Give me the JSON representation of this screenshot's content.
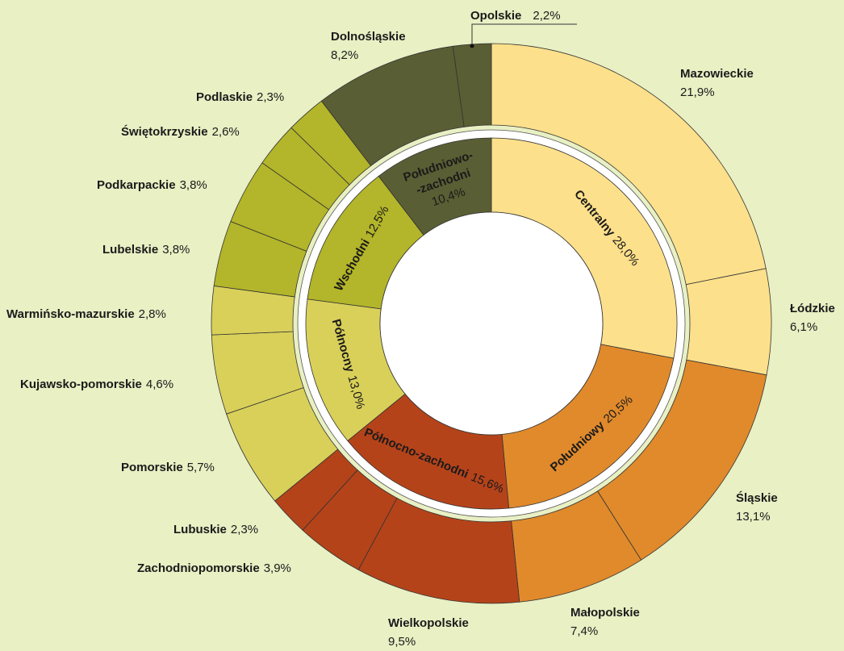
{
  "chart_data": {
    "type": "nested-donut",
    "inner": {
      "categories": [
        "Centralny",
        "Południowy",
        "Północno-zachodni",
        "Północny",
        "Wschodni",
        "Południowo-\n-zachodni"
      ],
      "values": [
        28.0,
        20.5,
        15.6,
        13.0,
        12.5,
        10.4
      ],
      "value_labels": [
        "28,0%",
        "20,5%",
        "15,6%",
        "13,0%",
        "12,5%",
        "10,4%"
      ],
      "colors": [
        "#fde08b",
        "#e08a2c",
        "#b5431a",
        "#d9d05a",
        "#b3b52a",
        "#5a5e34"
      ]
    },
    "outer": {
      "categories": [
        "Mazowieckie",
        "Łódzkie",
        "Śląskie",
        "Małopolskie",
        "Wielkopolskie",
        "Zachodniopomorskie",
        "Lubuskie",
        "Pomorskie",
        "Kujawsko-pomorskie",
        "Warmińsko-mazurskie",
        "Lubelskie",
        "Podkarpackie",
        "Świętokrzyskie",
        "Podlaskie",
        "Dolnośląskie",
        "Opolskie"
      ],
      "values": [
        21.9,
        6.1,
        13.1,
        7.4,
        9.5,
        3.9,
        2.3,
        5.7,
        4.6,
        2.8,
        3.8,
        3.8,
        2.6,
        2.3,
        8.2,
        2.2
      ],
      "value_labels": [
        "21,9%",
        "6,1%",
        "13,1%",
        "7,4%",
        "9,5%",
        "3,9%",
        "2,3%",
        "5,7%",
        "4,6%",
        "2,8%",
        "3,8%",
        "3,8%",
        "2,6%",
        "2,3%",
        "8,2%",
        "2,2%"
      ],
      "colors": [
        "#fde08b",
        "#fde08b",
        "#e08a2c",
        "#e08a2c",
        "#b5431a",
        "#b5431a",
        "#b5431a",
        "#d9d05a",
        "#d9d05a",
        "#d9d05a",
        "#b3b52a",
        "#b3b52a",
        "#b3b52a",
        "#b3b52a",
        "#5a5e34",
        "#5a5e34"
      ]
    }
  }
}
